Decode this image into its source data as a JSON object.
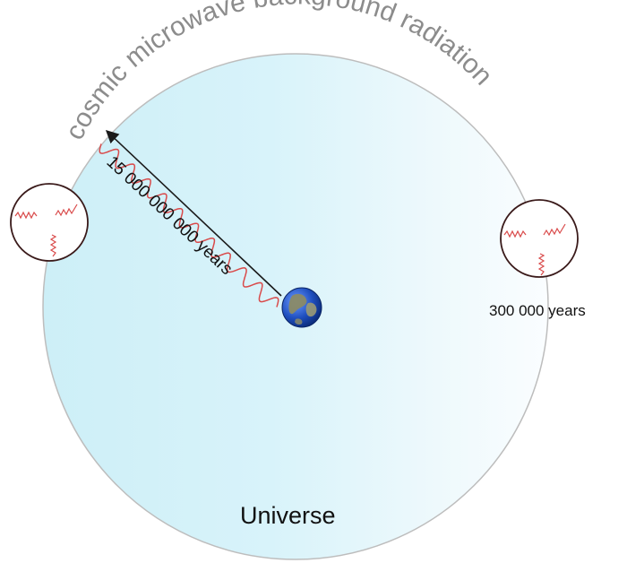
{
  "diagram": {
    "arc_label": "cosmic microwave background radiation",
    "distance_label": "15 000 000 000 years",
    "age_label": "300 000 years",
    "universe_label": "Universe",
    "icons": {
      "earth": "earth-icon",
      "photon": "wavy-photon-line",
      "arrow": "arrow-icon"
    },
    "colors": {
      "universe_fill_left": "#cdeff7",
      "universe_fill_right": "#f6fcfe",
      "universe_edge": "#bdbdbd",
      "photon_wave": "#d94a4a",
      "arc_text": "#8c8c8c",
      "earth_ocean": "#1f4fbf",
      "earth_land": "#8a8a66"
    }
  }
}
